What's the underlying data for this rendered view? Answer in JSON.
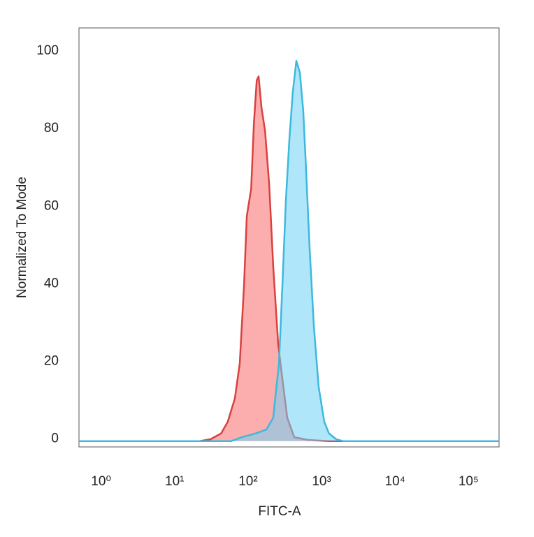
{
  "chart_data": {
    "type": "area",
    "x_label": "FITC-A",
    "y_label": "Normalized To Mode",
    "xscale": "log",
    "xlim": [
      0.5,
      260000
    ],
    "ylim": [
      -1.5,
      106.5
    ],
    "xticks": [
      {
        "value": 1,
        "label": "10⁰"
      },
      {
        "value": 10,
        "label": "10¹"
      },
      {
        "value": 100,
        "label": "10²"
      },
      {
        "value": 1000,
        "label": "10³"
      },
      {
        "value": 10000,
        "label": "10⁴"
      },
      {
        "value": 100000,
        "label": "10⁵"
      }
    ],
    "yticks": [
      0,
      20,
      40,
      60,
      80,
      100
    ],
    "grid": false,
    "series": [
      {
        "color": "#d9413e",
        "fill": "rgba(250,120,120,0.6)",
        "x": [
          0.5,
          22,
          31,
          43,
          53,
          66,
          77,
          88,
          96,
          110,
          120,
          131,
          139,
          152,
          170,
          194,
          220,
          257,
          293,
          341,
          425,
          658,
          1260,
          260000
        ],
        "values": [
          0,
          0,
          0.5,
          2,
          5,
          11,
          20,
          40,
          58,
          65,
          82,
          93,
          94,
          86,
          80,
          66,
          45,
          25,
          16,
          6,
          1,
          0.3,
          0,
          0
        ]
      },
      {
        "color": "#3db8de",
        "fill": "rgba(110,210,245,0.55)",
        "x": [
          0.5,
          59,
          83,
          128,
          178,
          220,
          263,
          293,
          327,
          365,
          406,
          454,
          506,
          564,
          615,
          687,
          783,
          912,
          1087,
          1260,
          1573,
          1950,
          260000
        ],
        "values": [
          0,
          0,
          1,
          2,
          3,
          6,
          20,
          40,
          62,
          78,
          90,
          98,
          95,
          85,
          70,
          50,
          30,
          14,
          5,
          2,
          0.5,
          0,
          0
        ]
      }
    ]
  }
}
